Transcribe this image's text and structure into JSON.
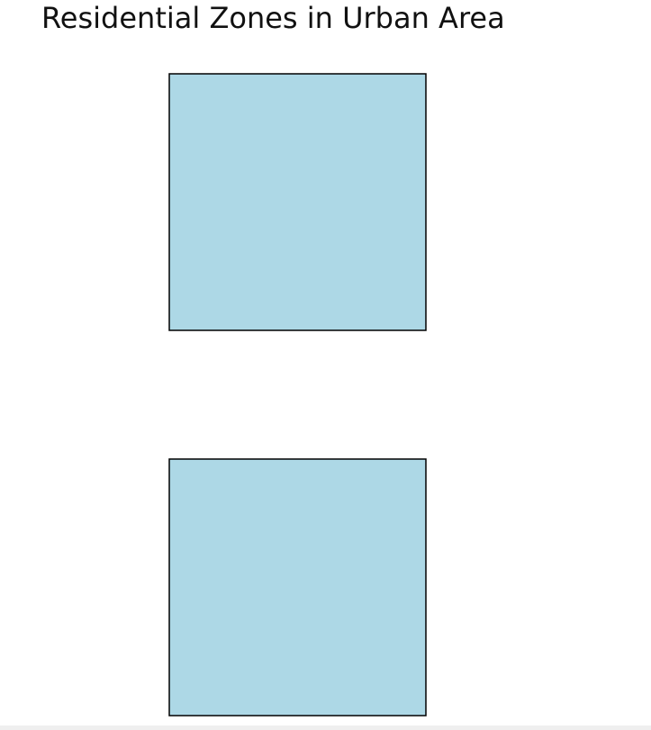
{
  "title": "Residential Zones in Urban Area",
  "zones": [
    {
      "id": "zone-1",
      "fill": "#add8e6"
    },
    {
      "id": "zone-2",
      "fill": "#add8e6"
    }
  ],
  "colors": {
    "zone_fill": "#add8e6",
    "zone_stroke": "#000000",
    "background": "#ffffff"
  }
}
